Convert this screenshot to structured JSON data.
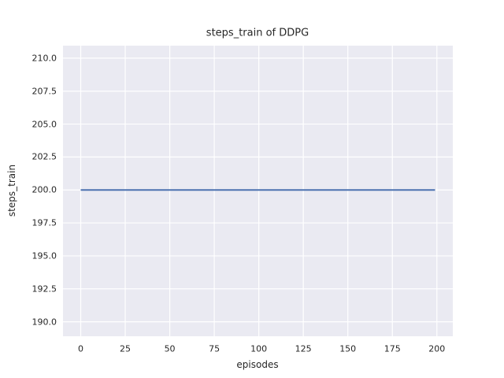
{
  "chart_data": {
    "type": "line",
    "title": "steps_train of DDPG",
    "xlabel": "episodes",
    "ylabel": "steps_train",
    "x_tick_labels": [
      "0",
      "25",
      "50",
      "75",
      "100",
      "125",
      "150",
      "175",
      "200"
    ],
    "y_tick_labels": [
      "190.0",
      "192.5",
      "195.0",
      "197.5",
      "200.0",
      "202.5",
      "205.0",
      "207.5",
      "210.0"
    ],
    "xlim": [
      -9.95,
      208.95
    ],
    "ylim": [
      188.9,
      210.95
    ],
    "grid": true,
    "legend": "none",
    "series": [
      {
        "name": "steps_train",
        "color": "#4c72b0",
        "x": [
          0,
          199
        ],
        "y": [
          200,
          200
        ]
      }
    ]
  },
  "style": {
    "figure_bg": "#ffffff",
    "axes_bg": "#eaeaf2",
    "grid_color": "#ffffff",
    "text_color": "#262626",
    "line_width": 2
  }
}
